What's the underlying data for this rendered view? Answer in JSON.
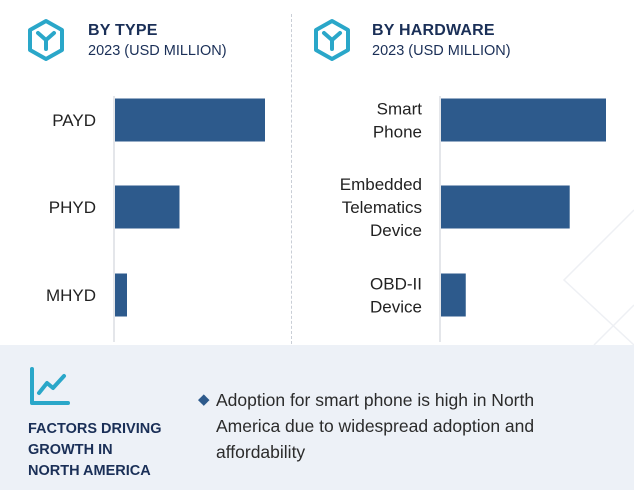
{
  "colors": {
    "bar": "#2d5a8c",
    "axis": "#c9ced6",
    "title": "#1a2f57",
    "icon": "#2aa7c9"
  },
  "chart_data": [
    {
      "type": "bar",
      "orientation": "horizontal",
      "title": "BY TYPE",
      "subtitle": "2023 (USD MILLION)",
      "categories": [
        "PAYD",
        "PHYD",
        "MHYD"
      ],
      "category_lines": [
        [
          "PAYD"
        ],
        [
          "PHYD"
        ],
        [
          "MHYD"
        ]
      ],
      "values": [
        100,
        43,
        8
      ],
      "xlim": [
        0,
        100
      ],
      "xlabel": "",
      "ylabel": "",
      "grid": false,
      "value_labels_shown": false
    },
    {
      "type": "bar",
      "orientation": "horizontal",
      "title": "BY HARDWARE",
      "subtitle": "2023 (USD MILLION)",
      "categories": [
        "Smart Phone",
        "Embedded Telematics Device",
        "OBD-II Device"
      ],
      "category_lines": [
        [
          "Smart",
          "Phone"
        ],
        [
          "Embedded",
          "Telematics",
          "Device"
        ],
        [
          "OBD-II",
          "Device"
        ]
      ],
      "values": [
        100,
        78,
        15
      ],
      "xlim": [
        0,
        100
      ],
      "xlabel": "",
      "ylabel": "",
      "grid": false,
      "value_labels_shown": false
    }
  ],
  "factors": {
    "heading": "FACTORS DRIVING GROWTH IN NORTH AMERICA",
    "heading_lines": [
      "FACTORS DRIVING",
      "GROWTH IN",
      "NORTH AMERICA"
    ],
    "items": [
      "Adoption for smart phone is high in North America due to widespread adoption and affordability"
    ]
  },
  "icons": {
    "panel_icon": "hexagon-y-icon",
    "factors_icon": "trend-chart-icon",
    "bullet": "diamond-bullet-icon"
  }
}
